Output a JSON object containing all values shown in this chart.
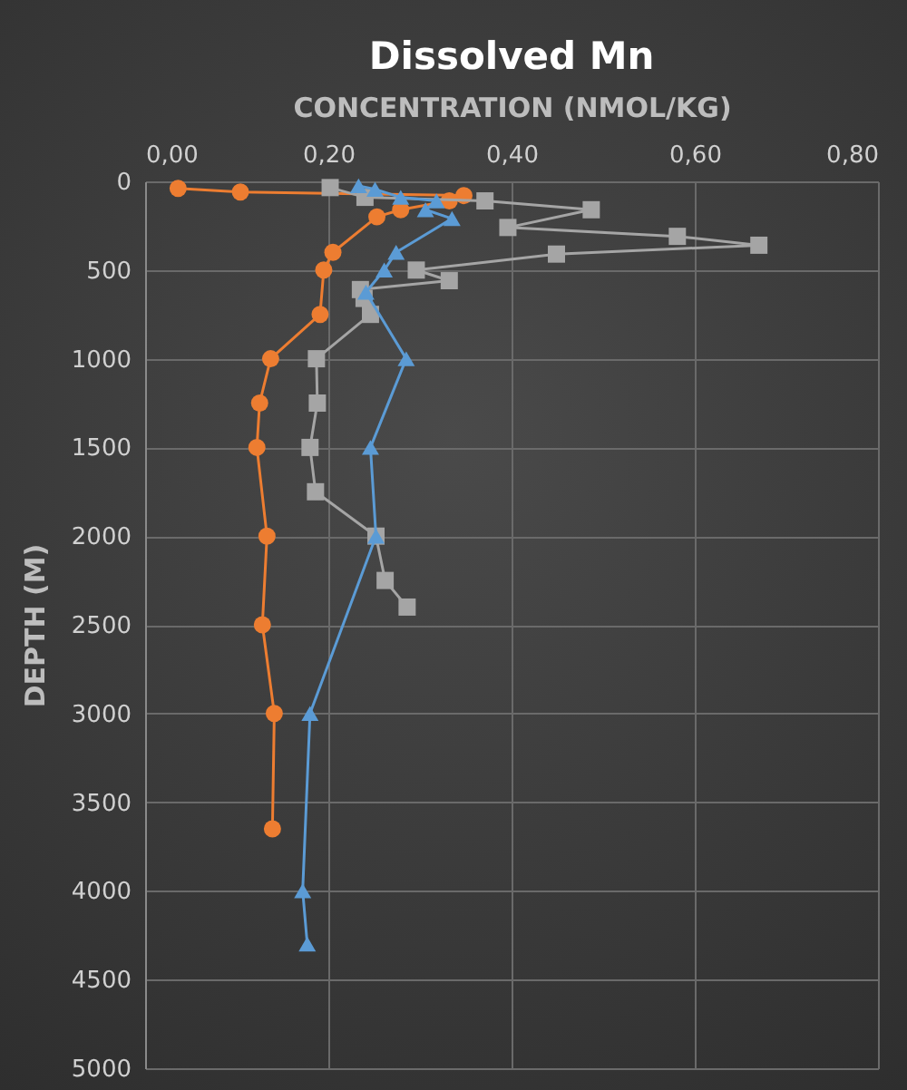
{
  "chart_data": {
    "type": "line",
    "title": "Dissolved Mn",
    "xlabel": "CONCENTRATION (NMOL/KG)",
    "ylabel": "DEPTH (M)",
    "xlim": [
      0,
      0.8
    ],
    "xticks": [
      {
        "value": 0,
        "label": "0,00"
      },
      {
        "value": 0.2,
        "label": "0,20"
      },
      {
        "value": 0.4,
        "label": "0,40"
      },
      {
        "value": 0.6,
        "label": "0,60"
      },
      {
        "value": 0.8,
        "label": "0,80"
      }
    ],
    "ylim": [
      5000,
      0
    ],
    "yticks": [
      0,
      500,
      1000,
      1500,
      2000,
      2500,
      3000,
      3500,
      4000,
      4500,
      5000
    ],
    "grid": true,
    "series": [
      {
        "color": "#ed7d31",
        "marker": "circle",
        "x": [
          0.036,
          0.104,
          0.348,
          0.332,
          0.279,
          0.253,
          0.205,
          0.195,
          0.191,
          0.137,
          0.125,
          0.122,
          0.133,
          0.128,
          0.141,
          0.139
        ],
        "values": [
          40,
          60,
          80,
          110,
          160,
          200,
          400,
          500,
          750,
          1000,
          1250,
          1500,
          2000,
          2500,
          3000,
          3650
        ]
      },
      {
        "color": "#a5a5a5",
        "marker": "square",
        "x": [
          0.202,
          0.24,
          0.371,
          0.487,
          0.396,
          0.581,
          0.67,
          0.449,
          0.296,
          0.332,
          0.235,
          0.239,
          0.246,
          0.187,
          0.188,
          0.18,
          0.186,
          0.252,
          0.262,
          0.286
        ],
        "values": [
          35,
          90,
          110,
          160,
          260,
          310,
          360,
          410,
          500,
          560,
          610,
          660,
          750,
          1000,
          1250,
          1500,
          1750,
          2000,
          2250,
          2400
        ]
      },
      {
        "color": "#5b9bd5",
        "marker": "triangle",
        "x": [
          0.233,
          0.251,
          0.279,
          0.318,
          0.306,
          0.335,
          0.274,
          0.261,
          0.241,
          0.285,
          0.246,
          0.252,
          0.18,
          0.172,
          0.177
        ],
        "values": [
          25,
          45,
          90,
          110,
          160,
          210,
          400,
          500,
          625,
          1000,
          1500,
          2000,
          3000,
          4000,
          4300
        ]
      }
    ]
  }
}
